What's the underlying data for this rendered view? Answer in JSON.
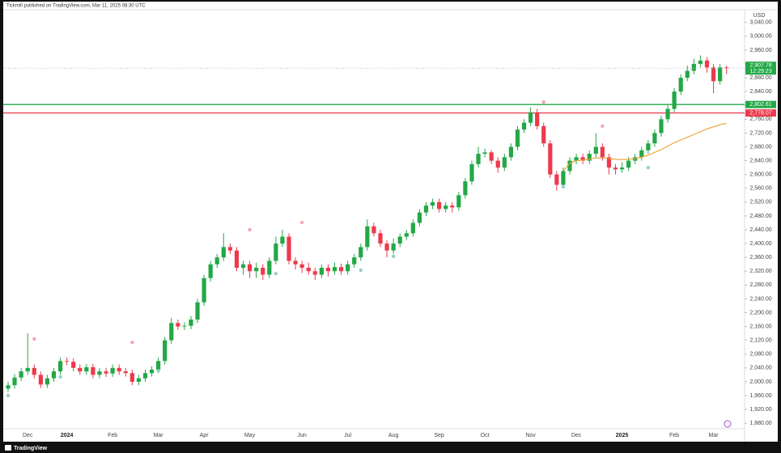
{
  "header": "Tickmill published on TradingView.com, Mar 11, 2025 08:30 UTC",
  "footer": "TradingView",
  "chart_data": {
    "type": "candlestick",
    "y_axis_label": "USD",
    "up_color": "#22a846",
    "down_color": "#ec3a4c",
    "grid": false,
    "ylim": [
      1864,
      3077
    ],
    "yticks": [
      {
        "value": 1880,
        "label": "1,880.00"
      },
      {
        "value": 1920,
        "label": "1,920.00"
      },
      {
        "value": 1960,
        "label": "1,960.00"
      },
      {
        "value": 2000,
        "label": "2,000.00"
      },
      {
        "value": 2040,
        "label": "2,040.00"
      },
      {
        "value": 2080,
        "label": "2,080.00"
      },
      {
        "value": 2120,
        "label": "2,120.00"
      },
      {
        "value": 2160,
        "label": "2,160.00"
      },
      {
        "value": 2200,
        "label": "2,200.00"
      },
      {
        "value": 2240,
        "label": "2,240.00"
      },
      {
        "value": 2280,
        "label": "2,280.00"
      },
      {
        "value": 2320,
        "label": "2,320.00"
      },
      {
        "value": 2360,
        "label": "2,360.00"
      },
      {
        "value": 2400,
        "label": "2,400.00"
      },
      {
        "value": 2440,
        "label": "2,440.00"
      },
      {
        "value": 2480,
        "label": "2,480.00"
      },
      {
        "value": 2520,
        "label": "2,520.00"
      },
      {
        "value": 2560,
        "label": "2,560.00"
      },
      {
        "value": 2600,
        "label": "2,600.00"
      },
      {
        "value": 2640,
        "label": "2,640.00"
      },
      {
        "value": 2680,
        "label": "2,680.00"
      },
      {
        "value": 2720,
        "label": "2,720.00"
      },
      {
        "value": 2760,
        "label": "2,760.00"
      },
      {
        "value": 2800,
        "label": "2,800.00"
      },
      {
        "value": 2840,
        "label": "2,840.00"
      },
      {
        "value": 2880,
        "label": "2,880.00"
      },
      {
        "value": 2920,
        "label": "2,920.00"
      },
      {
        "value": 2960,
        "label": "2,960.00"
      },
      {
        "value": 3000,
        "label": "3,000.00"
      },
      {
        "value": 3040,
        "label": "3,040.00"
      }
    ],
    "categories": [
      null,
      null,
      null,
      "Dec",
      null,
      null,
      null,
      null,
      null,
      "2024",
      null,
      null,
      null,
      null,
      null,
      null,
      "Feb",
      null,
      null,
      null,
      null,
      null,
      null,
      "Mar",
      null,
      null,
      null,
      null,
      null,
      null,
      "Apr",
      null,
      null,
      null,
      null,
      null,
      null,
      "May",
      null,
      null,
      null,
      null,
      null,
      null,
      null,
      "Jun",
      null,
      null,
      null,
      null,
      null,
      null,
      "Jul",
      null,
      null,
      null,
      null,
      null,
      null,
      "Aug",
      null,
      null,
      null,
      null,
      null,
      null,
      "Sep",
      null,
      null,
      null,
      null,
      null,
      null,
      "Oct",
      null,
      null,
      null,
      null,
      null,
      null,
      "Nov",
      null,
      null,
      null,
      null,
      null,
      null,
      "Dec",
      null,
      null,
      null,
      null,
      null,
      null,
      "2025",
      null,
      null,
      null,
      null,
      null,
      null,
      null,
      "Feb",
      null,
      null,
      null,
      null,
      null,
      "Mar",
      null,
      null
    ],
    "open": [
      1980,
      1990,
      2012,
      2030,
      2040,
      2020,
      1992,
      2010,
      2030,
      2060,
      2058,
      2040,
      2030,
      2042,
      2020,
      2030,
      2024,
      2040,
      2030,
      2025,
      2000,
      2010,
      2025,
      2035,
      2060,
      2120,
      2170,
      2160,
      2162,
      2180,
      2230,
      2300,
      2340,
      2360,
      2390,
      2380,
      2330,
      2340,
      2320,
      2330,
      2310,
      2350,
      2400,
      2420,
      2350,
      2340,
      2330,
      2320,
      2310,
      2330,
      2320,
      2332,
      2320,
      2340,
      2360,
      2390,
      2450,
      2430,
      2400,
      2380,
      2400,
      2420,
      2430,
      2460,
      2490,
      2510,
      2520,
      2500,
      2510,
      2505,
      2540,
      2580,
      2630,
      2660,
      2664,
      2640,
      2620,
      2650,
      2680,
      2730,
      2750,
      2780,
      2740,
      2690,
      2600,
      2570,
      2610,
      2640,
      2650,
      2640,
      2660,
      2680,
      2650,
      2620,
      2615,
      2620,
      2640,
      2650,
      2670,
      2690,
      2720,
      2760,
      2790,
      2840,
      2880,
      2900,
      2920,
      2930,
      2910,
      2870,
      2910
    ],
    "high": [
      2000,
      2022,
      2040,
      2140,
      2050,
      2030,
      2020,
      2040,
      2070,
      2070,
      2068,
      2050,
      2052,
      2052,
      2040,
      2040,
      2050,
      2050,
      2040,
      2035,
      2020,
      2035,
      2045,
      2070,
      2130,
      2185,
      2180,
      2172,
      2190,
      2240,
      2310,
      2350,
      2370,
      2430,
      2400,
      2390,
      2350,
      2350,
      2345,
      2340,
      2360,
      2420,
      2440,
      2430,
      2360,
      2350,
      2345,
      2330,
      2340,
      2340,
      2345,
      2342,
      2350,
      2370,
      2400,
      2470,
      2460,
      2440,
      2410,
      2415,
      2430,
      2440,
      2470,
      2500,
      2520,
      2530,
      2530,
      2520,
      2520,
      2550,
      2590,
      2640,
      2680,
      2675,
      2670,
      2650,
      2660,
      2690,
      2740,
      2760,
      2794,
      2790,
      2750,
      2700,
      2610,
      2620,
      2650,
      2660,
      2660,
      2670,
      2720,
      2690,
      2660,
      2630,
      2635,
      2650,
      2660,
      2680,
      2700,
      2730,
      2770,
      2800,
      2850,
      2890,
      2915,
      2935,
      2945,
      2940,
      2920,
      2920,
      2915
    ],
    "low": [
      1970,
      1980,
      2002,
      2020,
      2010,
      1982,
      1982,
      2000,
      2020,
      2048,
      2030,
      2020,
      2020,
      2010,
      2010,
      2014,
      2014,
      2020,
      2015,
      1990,
      1990,
      2000,
      2015,
      2025,
      2050,
      2110,
      2150,
      2150,
      2152,
      2170,
      2220,
      2290,
      2330,
      2350,
      2370,
      2320,
      2310,
      2300,
      2300,
      2295,
      2300,
      2340,
      2390,
      2340,
      2325,
      2315,
      2310,
      2295,
      2300,
      2305,
      2310,
      2310,
      2310,
      2330,
      2350,
      2380,
      2420,
      2390,
      2360,
      2370,
      2390,
      2410,
      2420,
      2450,
      2480,
      2500,
      2490,
      2490,
      2490,
      2495,
      2530,
      2570,
      2620,
      2650,
      2630,
      2605,
      2610,
      2640,
      2670,
      2720,
      2740,
      2730,
      2680,
      2590,
      2553,
      2560,
      2600,
      2630,
      2630,
      2630,
      2650,
      2640,
      2600,
      2600,
      2605,
      2610,
      2630,
      2640,
      2660,
      2680,
      2710,
      2750,
      2780,
      2830,
      2870,
      2890,
      2910,
      2895,
      2835,
      2860,
      2890
    ],
    "close": [
      1990,
      2012,
      2030,
      2040,
      2020,
      1992,
      2010,
      2030,
      2060,
      2058,
      2040,
      2030,
      2042,
      2020,
      2030,
      2024,
      2040,
      2030,
      2025,
      2000,
      2010,
      2025,
      2035,
      2060,
      2120,
      2170,
      2160,
      2162,
      2180,
      2230,
      2300,
      2340,
      2360,
      2390,
      2380,
      2330,
      2340,
      2320,
      2330,
      2310,
      2350,
      2400,
      2420,
      2350,
      2340,
      2330,
      2320,
      2310,
      2330,
      2320,
      2332,
      2320,
      2340,
      2360,
      2390,
      2450,
      2430,
      2400,
      2380,
      2400,
      2420,
      2430,
      2460,
      2490,
      2510,
      2520,
      2500,
      2510,
      2505,
      2540,
      2580,
      2630,
      2660,
      2664,
      2640,
      2620,
      2650,
      2680,
      2730,
      2750,
      2780,
      2740,
      2690,
      2600,
      2570,
      2610,
      2640,
      2650,
      2640,
      2660,
      2680,
      2650,
      2620,
      2615,
      2620,
      2640,
      2650,
      2670,
      2690,
      2720,
      2760,
      2790,
      2840,
      2880,
      2900,
      2920,
      2930,
      2910,
      2870,
      2910,
      2907.78
    ],
    "last_price_label": "2,907.78",
    "countdown": "12:29:23",
    "moving_average": {
      "color": "#f0a030",
      "values": [
        null,
        null,
        null,
        null,
        null,
        null,
        null,
        null,
        null,
        null,
        null,
        null,
        null,
        null,
        null,
        null,
        null,
        null,
        null,
        null,
        null,
        null,
        null,
        null,
        null,
        null,
        null,
        null,
        null,
        null,
        null,
        null,
        null,
        null,
        null,
        null,
        null,
        null,
        null,
        null,
        null,
        null,
        null,
        null,
        null,
        null,
        null,
        null,
        null,
        null,
        null,
        null,
        null,
        null,
        null,
        null,
        null,
        null,
        null,
        null,
        null,
        null,
        null,
        null,
        null,
        null,
        null,
        null,
        null,
        null,
        null,
        null,
        null,
        null,
        null,
        null,
        null,
        null,
        null,
        null,
        null,
        null,
        null,
        null,
        null,
        2610,
        2632,
        2640,
        2642,
        2645,
        2648,
        2648,
        2646,
        2644,
        2643,
        2644,
        2646,
        2650,
        2656,
        2664,
        2672,
        2682,
        2692,
        2700,
        2708,
        2716,
        2724,
        2732,
        2738,
        2744,
        2748
      ]
    },
    "pivot_highs": {
      "color": "#f4a3aa",
      "values": [
        null,
        null,
        null,
        null,
        2124,
        null,
        null,
        null,
        null,
        null,
        null,
        null,
        null,
        null,
        null,
        null,
        null,
        null,
        null,
        2114,
        null,
        null,
        null,
        null,
        null,
        null,
        null,
        null,
        null,
        null,
        null,
        null,
        null,
        null,
        null,
        null,
        null,
        2440,
        null,
        null,
        null,
        null,
        null,
        null,
        null,
        2461,
        null,
        null,
        null,
        null,
        null,
        null,
        null,
        null,
        null,
        null,
        null,
        null,
        null,
        null,
        null,
        null,
        null,
        null,
        null,
        null,
        null,
        null,
        null,
        null,
        null,
        null,
        null,
        null,
        null,
        null,
        null,
        null,
        null,
        null,
        null,
        null,
        2810,
        null,
        null,
        null,
        null,
        null,
        null,
        null,
        null,
        2740,
        null,
        null,
        null,
        null,
        null,
        null,
        null,
        null,
        null,
        null,
        null,
        null,
        null,
        null,
        null,
        null,
        null,
        null,
        null
      ]
    },
    "pivot_lows": {
      "color": "#8ccfc2",
      "values": [
        1960,
        null,
        null,
        null,
        null,
        null,
        null,
        null,
        2014,
        null,
        null,
        null,
        null,
        null,
        null,
        null,
        null,
        null,
        null,
        null,
        null,
        null,
        null,
        2032,
        null,
        null,
        null,
        null,
        null,
        null,
        null,
        null,
        null,
        null,
        null,
        null,
        null,
        null,
        null,
        null,
        null,
        2313,
        null,
        null,
        null,
        null,
        null,
        null,
        null,
        null,
        null,
        null,
        null,
        null,
        2323,
        null,
        null,
        null,
        null,
        2363,
        null,
        null,
        null,
        null,
        null,
        null,
        null,
        null,
        null,
        null,
        null,
        null,
        null,
        null,
        null,
        null,
        null,
        null,
        null,
        null,
        null,
        null,
        null,
        null,
        null,
        2564,
        null,
        null,
        null,
        null,
        null,
        null,
        null,
        null,
        null,
        null,
        null,
        null,
        2620,
        null,
        null,
        null,
        null,
        null,
        null,
        null,
        null,
        null,
        null,
        null,
        null
      ]
    },
    "levels": [
      {
        "value": 2802.61,
        "label": "2,802.61",
        "color": "#22a846"
      },
      {
        "value": 2778.07,
        "label": "2,778.07",
        "color": "#ec3a4c"
      }
    ]
  }
}
